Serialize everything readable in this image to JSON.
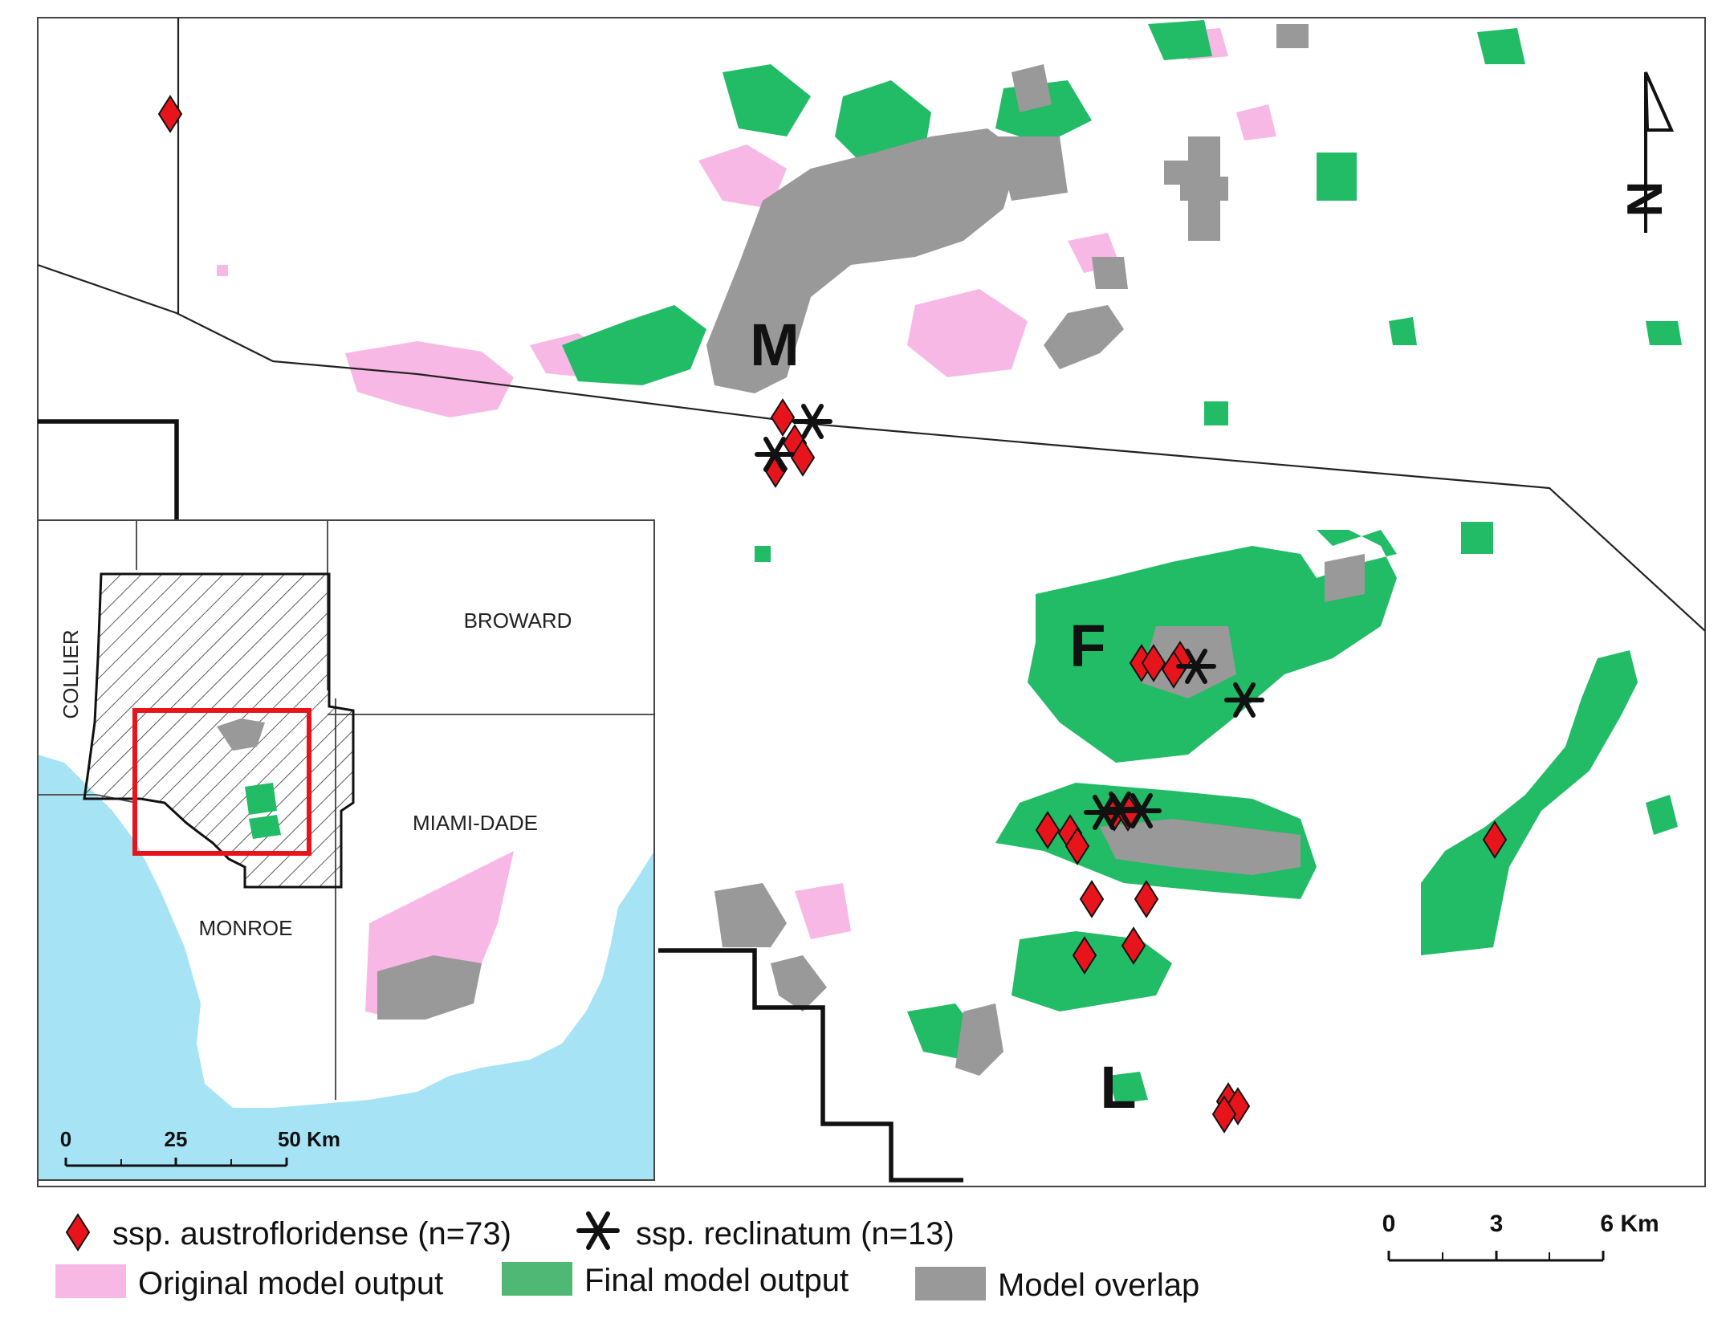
{
  "map": {
    "site_labels": [
      "M",
      "F",
      "L"
    ],
    "north_arrow": {
      "label": "N",
      "icon": "north-arrow-icon"
    }
  },
  "inset": {
    "county_labels": [
      "COLLIER",
      "BROWARD",
      "MIAMI-DADE",
      "MONROE"
    ],
    "scale_bar": {
      "ticks": [
        "0",
        "25",
        "50 Km"
      ]
    }
  },
  "legend": {
    "points": [
      {
        "label": "ssp. austrofloridense (n=73)",
        "icon": "red-diamond-icon"
      },
      {
        "label": "ssp. reclinatum (n=13)",
        "icon": "black-asterisk-icon"
      }
    ],
    "areas": [
      {
        "label": "Original model output"
      },
      {
        "label": "Final model output"
      },
      {
        "label": "Model overlap"
      }
    ]
  },
  "scale_bar": {
    "ticks": [
      "0",
      "3",
      "6 Km"
    ]
  },
  "colors": {
    "original_model": "#f7b8e6",
    "final_model": "#22bb66",
    "model_overlap": "#999999",
    "austrofloridense": "#e8141c",
    "reclinatum": "#111111",
    "inset_water": "#a6e4f5",
    "inset_extent_box": "#e8141c"
  }
}
